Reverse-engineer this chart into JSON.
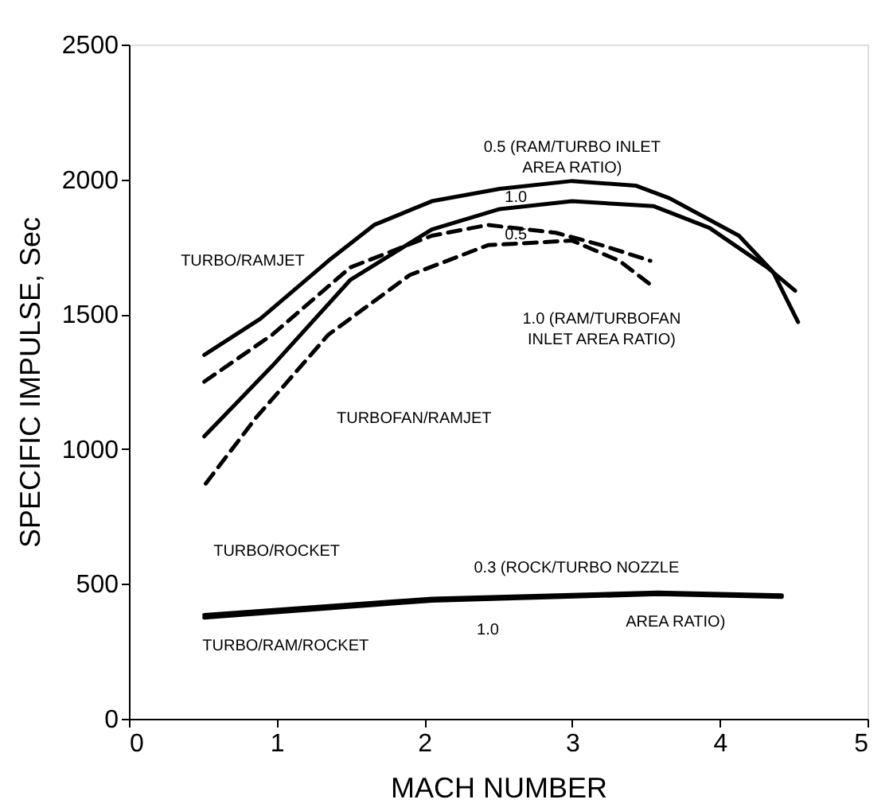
{
  "chart_data": {
    "type": "line",
    "xlabel": "MACH NUMBER",
    "ylabel": "SPECIFIC IMPULSE, Sec",
    "xlim": [
      0,
      5
    ],
    "xticks": [
      0,
      1,
      2,
      3,
      4,
      5
    ],
    "ylim": [
      0,
      2500
    ],
    "yticks": [
      0,
      500,
      1000,
      1500,
      2000,
      2500
    ],
    "grid": false,
    "marker": "none",
    "series": [
      {
        "color": "#000000",
        "line_style": "solid",
        "x": [
          0.51,
          0.89,
          1.35,
          1.66,
          2.05,
          2.51,
          3.0,
          3.43,
          3.66,
          4.13,
          4.36,
          4.53
        ],
        "values": [
          1349,
          1483,
          1698,
          1831,
          1919,
          1965,
          1994,
          1977,
          1930,
          1791,
          1657,
          1471
        ]
      },
      {
        "color": "#000000",
        "line_style": "solid",
        "x": [
          0.51,
          0.97,
          1.5,
          2.05,
          2.51,
          3.0,
          3.55,
          3.93,
          4.32,
          4.51
        ],
        "values": [
          1047,
          1308,
          1628,
          1814,
          1890,
          1919,
          1901,
          1820,
          1674,
          1587
        ]
      },
      {
        "color": "#000000",
        "line_style": "dashed",
        "x": [
          0.51,
          0.97,
          1.5,
          2.05,
          2.43,
          2.89,
          3.2,
          3.53
        ],
        "values": [
          1250,
          1424,
          1674,
          1791,
          1831,
          1802,
          1756,
          1698
        ]
      },
      {
        "color": "#000000",
        "line_style": "dashed",
        "x": [
          0.52,
          0.86,
          1.35,
          1.9,
          2.43,
          3.0,
          3.32,
          3.53
        ],
        "values": [
          872,
          1116,
          1424,
          1645,
          1756,
          1773,
          1698,
          1610
        ]
      },
      {
        "color": "#000000",
        "line_style": "solid",
        "x": [
          0.51,
          2.05,
          3.58,
          4.42
        ],
        "values": [
          385,
          445,
          468,
          458
        ]
      },
      {
        "color": "#000000",
        "line_style": "solid",
        "x": [
          0.51,
          2.05,
          3.58,
          4.42
        ],
        "values": [
          375,
          438,
          462,
          452
        ]
      }
    ],
    "annotations": [
      "0.5 (RAM/TURBO INLET\nAREA RATIO)",
      "TURBO/RAMJET",
      {
        "text": "1.0",
        "x": 2.62,
        "y": 1935
      },
      {
        "text": "0.5",
        "x": 2.62,
        "y": 1795
      },
      "1.0 (RAM/TURBOFAN\nINLET AREA RATIO)",
      "TURBOFAN/RAMJET",
      "TURBO/ROCKET",
      "0.3 (ROCK/TURBO NOZZLE",
      "AREA RATIO)",
      "1.0",
      "TURBO/RAM/ROCKET"
    ]
  }
}
